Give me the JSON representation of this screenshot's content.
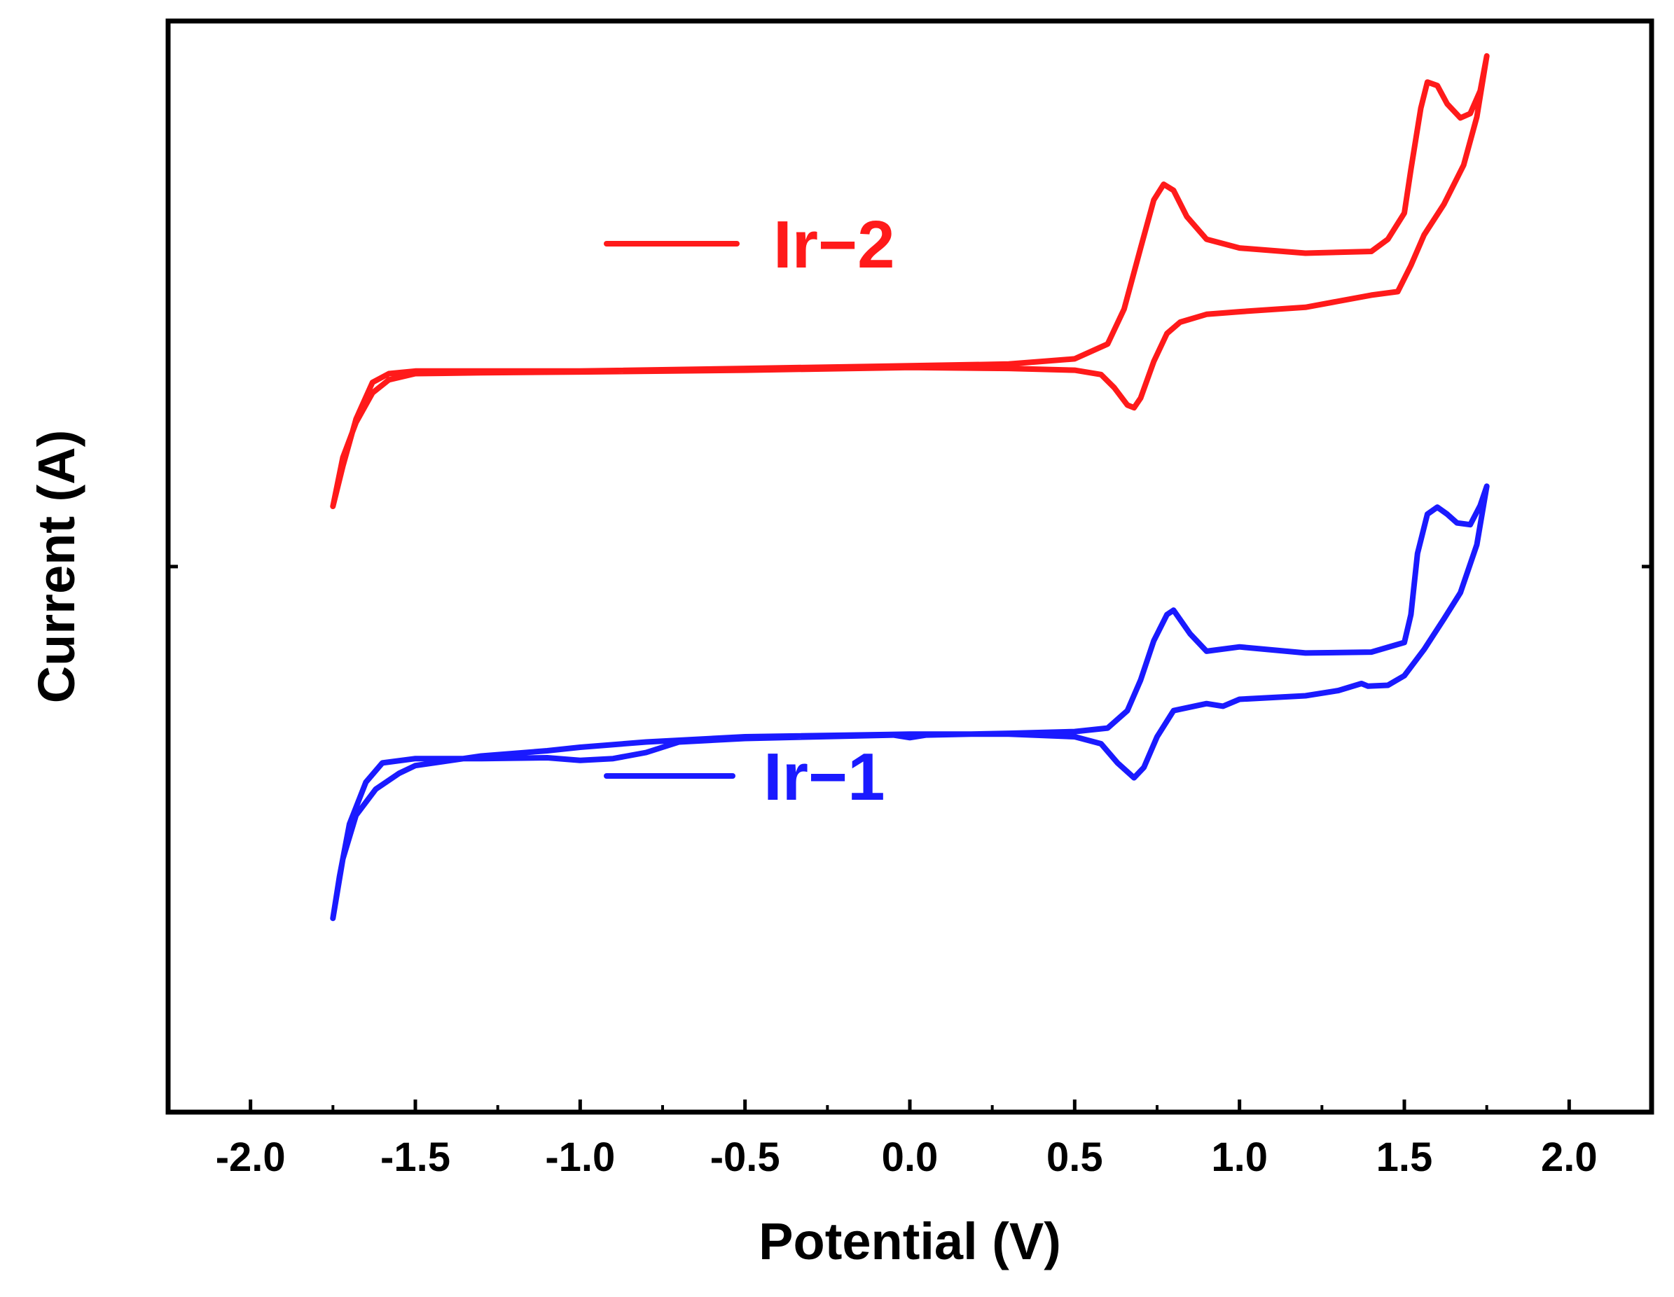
{
  "chart_data": {
    "type": "line",
    "title": "",
    "xlabel": "Potential (V)",
    "ylabel": "Current (A)",
    "xlim": [
      -2.25,
      2.25
    ],
    "ylim": [
      -2.5,
      10.0
    ],
    "x_ticks": [
      -2.0,
      -1.5,
      -1.0,
      -0.5,
      0.0,
      0.5,
      1.0,
      1.5,
      2.0
    ],
    "x_tick_labels": [
      "-2.0",
      "-1.5",
      "-1.0",
      "-0.5",
      "0.0",
      "0.5",
      "1.0",
      "1.5",
      "2.0"
    ],
    "y_tick_labels": [],
    "grid": false,
    "legend_position": "in-plot, above each curve",
    "series": [
      {
        "name": "Ir−2",
        "color": "#ff1a1a",
        "points": [
          [
            -1.75,
            4.44
          ],
          [
            -1.72,
            5.0
          ],
          [
            -1.68,
            5.4
          ],
          [
            -1.63,
            5.74
          ],
          [
            -1.58,
            5.89
          ],
          [
            -1.5,
            5.96
          ],
          [
            -1.3,
            5.97
          ],
          [
            -1.0,
            5.98
          ],
          [
            -0.5,
            6.0
          ],
          [
            0.0,
            6.03
          ],
          [
            0.3,
            6.02
          ],
          [
            0.5,
            6.0
          ],
          [
            0.58,
            5.95
          ],
          [
            0.62,
            5.8
          ],
          [
            0.66,
            5.6
          ],
          [
            0.68,
            5.57
          ],
          [
            0.7,
            5.68
          ],
          [
            0.74,
            6.1
          ],
          [
            0.78,
            6.42
          ],
          [
            0.82,
            6.55
          ],
          [
            0.9,
            6.64
          ],
          [
            1.0,
            6.67
          ],
          [
            1.2,
            6.72
          ],
          [
            1.4,
            6.86
          ],
          [
            1.48,
            6.9
          ],
          [
            1.52,
            7.2
          ],
          [
            1.56,
            7.55
          ],
          [
            1.62,
            7.9
          ],
          [
            1.68,
            8.35
          ],
          [
            1.72,
            8.9
          ],
          [
            1.75,
            9.6
          ],
          [
            1.73,
            9.2
          ],
          [
            1.7,
            8.94
          ],
          [
            1.67,
            8.89
          ],
          [
            1.63,
            9.05
          ],
          [
            1.6,
            9.26
          ],
          [
            1.57,
            9.3
          ],
          [
            1.55,
            9.0
          ],
          [
            1.52,
            8.3
          ],
          [
            1.5,
            7.8
          ],
          [
            1.45,
            7.5
          ],
          [
            1.4,
            7.36
          ],
          [
            1.2,
            7.34
          ],
          [
            1.0,
            7.4
          ],
          [
            0.9,
            7.5
          ],
          [
            0.84,
            7.76
          ],
          [
            0.8,
            8.06
          ],
          [
            0.77,
            8.13
          ],
          [
            0.74,
            7.95
          ],
          [
            0.7,
            7.4
          ],
          [
            0.65,
            6.7
          ],
          [
            0.6,
            6.3
          ],
          [
            0.5,
            6.13
          ],
          [
            0.3,
            6.07
          ],
          [
            0.0,
            6.05
          ],
          [
            -0.5,
            6.02
          ],
          [
            -1.0,
            5.99
          ],
          [
            -1.5,
            5.99
          ],
          [
            -1.58,
            5.96
          ],
          [
            -1.63,
            5.86
          ],
          [
            -1.68,
            5.44
          ],
          [
            -1.72,
            4.9
          ],
          [
            -1.75,
            4.44
          ]
        ]
      },
      {
        "name": "Ir−1",
        "color": "#1a1aff",
        "points": [
          [
            -1.75,
            -0.28
          ],
          [
            -1.72,
            0.4
          ],
          [
            -1.68,
            0.9
          ],
          [
            -1.62,
            1.2
          ],
          [
            -1.55,
            1.38
          ],
          [
            -1.5,
            1.47
          ],
          [
            -1.3,
            1.58
          ],
          [
            -1.1,
            1.64
          ],
          [
            -1.0,
            1.68
          ],
          [
            -0.8,
            1.74
          ],
          [
            -0.5,
            1.8
          ],
          [
            0.0,
            1.83
          ],
          [
            0.3,
            1.83
          ],
          [
            0.5,
            1.8
          ],
          [
            0.58,
            1.72
          ],
          [
            0.63,
            1.5
          ],
          [
            0.68,
            1.33
          ],
          [
            0.71,
            1.45
          ],
          [
            0.75,
            1.8
          ],
          [
            0.8,
            2.1
          ],
          [
            0.9,
            2.18
          ],
          [
            0.95,
            2.15
          ],
          [
            1.0,
            2.23
          ],
          [
            1.2,
            2.27
          ],
          [
            1.3,
            2.33
          ],
          [
            1.37,
            2.41
          ],
          [
            1.39,
            2.38
          ],
          [
            1.45,
            2.39
          ],
          [
            1.5,
            2.5
          ],
          [
            1.56,
            2.8
          ],
          [
            1.62,
            3.15
          ],
          [
            1.67,
            3.45
          ],
          [
            1.72,
            4.0
          ],
          [
            1.75,
            4.67
          ],
          [
            1.73,
            4.45
          ],
          [
            1.7,
            4.23
          ],
          [
            1.66,
            4.25
          ],
          [
            1.63,
            4.35
          ],
          [
            1.6,
            4.43
          ],
          [
            1.57,
            4.35
          ],
          [
            1.54,
            3.9
          ],
          [
            1.52,
            3.2
          ],
          [
            1.5,
            2.88
          ],
          [
            1.4,
            2.77
          ],
          [
            1.2,
            2.76
          ],
          [
            1.0,
            2.83
          ],
          [
            0.9,
            2.78
          ],
          [
            0.85,
            2.98
          ],
          [
            0.8,
            3.25
          ],
          [
            0.78,
            3.2
          ],
          [
            0.74,
            2.9
          ],
          [
            0.7,
            2.45
          ],
          [
            0.66,
            2.1
          ],
          [
            0.6,
            1.9
          ],
          [
            0.5,
            1.86
          ],
          [
            0.3,
            1.84
          ],
          [
            0.05,
            1.82
          ],
          [
            0.0,
            1.79
          ],
          [
            -0.05,
            1.82
          ],
          [
            -0.5,
            1.78
          ],
          [
            -0.7,
            1.74
          ],
          [
            -0.8,
            1.62
          ],
          [
            -0.9,
            1.55
          ],
          [
            -1.0,
            1.53
          ],
          [
            -1.1,
            1.56
          ],
          [
            -1.3,
            1.55
          ],
          [
            -1.5,
            1.55
          ],
          [
            -1.6,
            1.5
          ],
          [
            -1.65,
            1.28
          ],
          [
            -1.7,
            0.8
          ],
          [
            -1.73,
            0.2
          ],
          [
            -1.75,
            -0.28
          ]
        ]
      }
    ]
  }
}
